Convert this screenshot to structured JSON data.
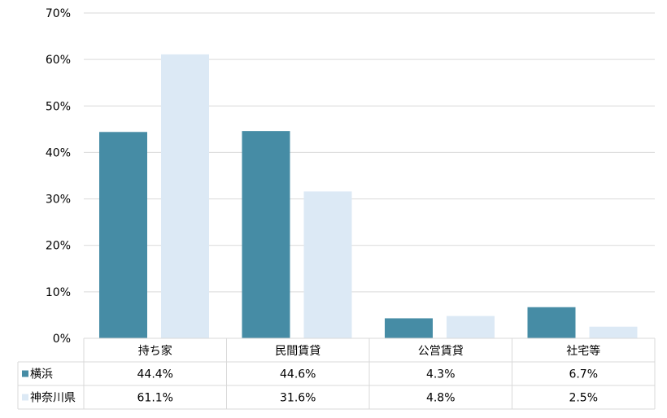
{
  "chart_data": {
    "type": "bar",
    "categories": [
      "持ち家",
      "民間賃貸",
      "公営賃貸",
      "社宅等"
    ],
    "series": [
      {
        "name": "横浜",
        "values": [
          44.4,
          44.6,
          4.3,
          6.7
        ],
        "labels": [
          "44.4%",
          "44.6%",
          "4.3%",
          "6.7%"
        ],
        "color": "#468ca5"
      },
      {
        "name": "神奈川県",
        "values": [
          61.1,
          31.6,
          4.8,
          2.5
        ],
        "labels": [
          "61.1%",
          "31.6%",
          "4.8%",
          "2.5%"
        ],
        "color": "#dce9f5"
      }
    ],
    "ylim": [
      0,
      70
    ],
    "yticks": [
      0,
      10,
      20,
      30,
      40,
      50,
      60,
      70
    ],
    "ytick_labels": [
      "0%",
      "10%",
      "20%",
      "30%",
      "40%",
      "50%",
      "60%",
      "70%"
    ],
    "grid": true,
    "legend": "data-table-below",
    "data_table": true
  }
}
